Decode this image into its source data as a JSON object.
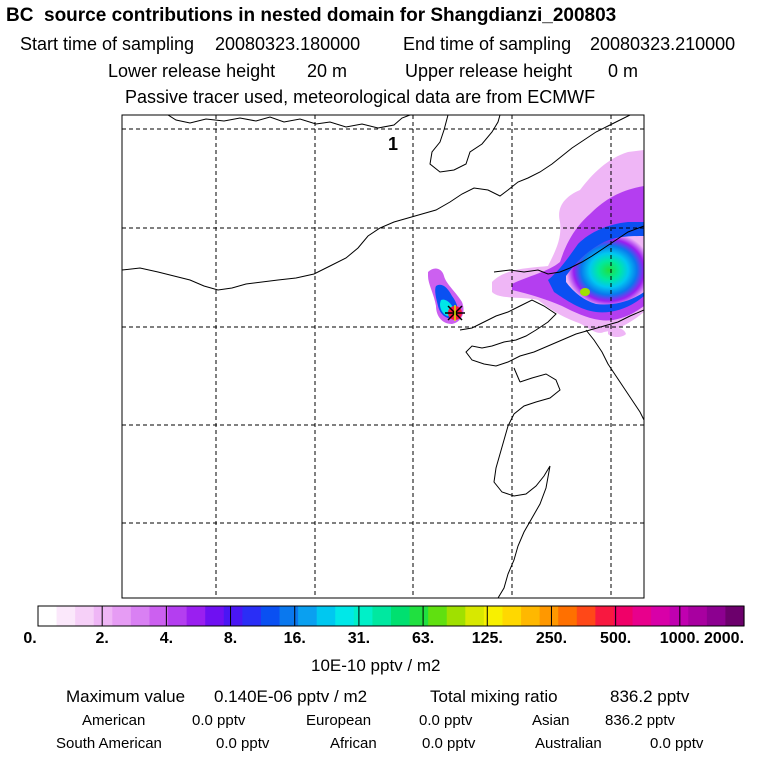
{
  "header": {
    "title": "BC  source contributions in nested domain for Shangdianzi_200803",
    "start_label": "Start time of sampling",
    "start_value": "20080323.180000",
    "end_label": "End time of sampling",
    "end_value": "20080323.210000",
    "lower_label": "Lower release height",
    "lower_value": "20 m",
    "upper_label": "Upper release height",
    "upper_value": "0 m",
    "tracer_note": "Passive tracer used, meteorological data are from ECMWF"
  },
  "map": {
    "label": "1"
  },
  "colorbar": {
    "ticks": [
      "0.",
      "2.",
      "4.",
      "8.",
      "16.",
      "31.",
      "63.",
      "125.",
      "250.",
      "500.",
      "1000.",
      "2000."
    ],
    "colors": [
      "#ffffff",
      "#fbe8fb",
      "#f6d0f8",
      "#efb6f6",
      "#e69cf4",
      "#d980f3",
      "#cc60f0",
      "#b43ef0",
      "#9a1ff0",
      "#6f10f2",
      "#4a16f4",
      "#2a2ef6",
      "#0a50f2",
      "#0a78ee",
      "#0aa0f0",
      "#00c8f0",
      "#00e8e8",
      "#00f0c8",
      "#00e8a0",
      "#00e070",
      "#20e040",
      "#60e010",
      "#a0e000",
      "#d8e800",
      "#f8f000",
      "#ffd800",
      "#ffb800",
      "#ff9800",
      "#ff7000",
      "#ff4818",
      "#f81840",
      "#f00068",
      "#e8008c",
      "#d800a8",
      "#c000b0",
      "#a800a0",
      "#8c0090",
      "#6c006c"
    ],
    "units": "10E-10 pptv / m2"
  },
  "summary": {
    "max_label": "Maximum value",
    "max_value": "0.140E-06 pptv / m2",
    "total_label": "Total mixing ratio",
    "total_value": "836.2 pptv",
    "american_label": "American",
    "american_value": "0.0 pptv",
    "european_label": "European",
    "european_value": "0.0 pptv",
    "asian_label": "Asian",
    "asian_value": "836.2 pptv",
    "south_american_label": "South American",
    "south_american_value": "0.0 pptv",
    "african_label": "African",
    "african_value": "0.0 pptv",
    "australian_label": "Australian",
    "australian_value": "0.0 pptv"
  }
}
